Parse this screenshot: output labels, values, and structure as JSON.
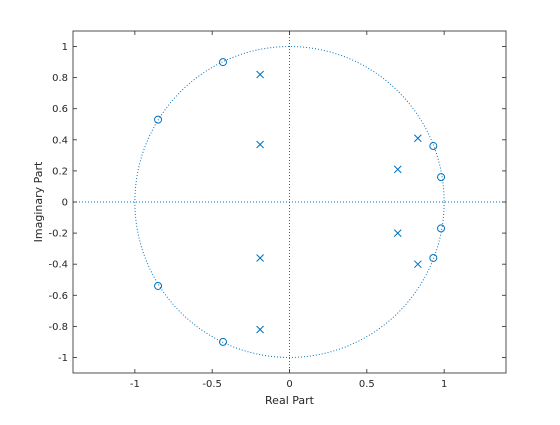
{
  "chart_data": {
    "type": "scatter",
    "title": "",
    "xlabel": "Real Part",
    "ylabel": "Imaginary Part",
    "xlim": [
      -1.4,
      1.4
    ],
    "ylim": [
      -1.1,
      1.1
    ],
    "xticks": [
      -1,
      -0.5,
      0,
      0.5,
      1
    ],
    "xtick_labels": [
      "-1",
      "-0.5",
      "0",
      "0.5",
      "1"
    ],
    "yticks": [
      -1,
      -0.8,
      -0.6,
      -0.4,
      -0.2,
      0,
      0.2,
      0.4,
      0.6,
      0.8,
      1
    ],
    "ytick_labels": [
      "-1",
      "-0.8",
      "-0.6",
      "-0.4",
      "-0.2",
      "0",
      "0.2",
      "0.4",
      "0.6",
      "0.8",
      "1"
    ],
    "grid": false,
    "unit_circle": true,
    "color": "#0072BD",
    "zeros": [
      {
        "x": -0.43,
        "y": 0.9
      },
      {
        "x": -0.85,
        "y": 0.53
      },
      {
        "x": 0.93,
        "y": 0.36
      },
      {
        "x": 0.98,
        "y": 0.16
      },
      {
        "x": 0.98,
        "y": -0.17
      },
      {
        "x": 0.93,
        "y": -0.36
      },
      {
        "x": -0.85,
        "y": -0.54
      },
      {
        "x": -0.43,
        "y": -0.9
      }
    ],
    "poles": [
      {
        "x": -0.19,
        "y": 0.82
      },
      {
        "x": -0.19,
        "y": 0.37
      },
      {
        "x": 0.83,
        "y": 0.41
      },
      {
        "x": 0.7,
        "y": 0.21
      },
      {
        "x": 0.7,
        "y": -0.2
      },
      {
        "x": 0.83,
        "y": -0.4
      },
      {
        "x": -0.19,
        "y": -0.36
      },
      {
        "x": -0.19,
        "y": -0.82
      }
    ]
  }
}
